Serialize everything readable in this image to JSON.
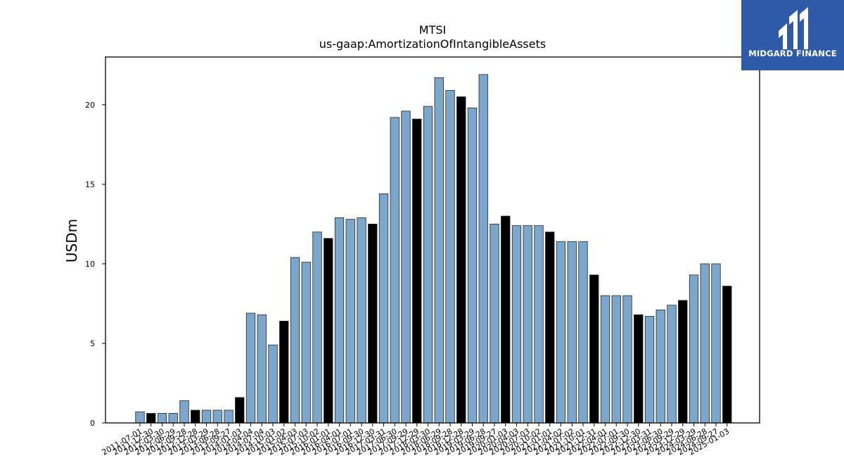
{
  "logo": {
    "text": "MIDGARD FINANCE",
    "background": "#2f5aa8"
  },
  "chart_data": {
    "type": "bar",
    "title": "MTSI",
    "subtitle": "us-gaap:AmortizationOfIntangibleAssets",
    "ylabel": "USDm",
    "xlabel": "",
    "ylim": [
      0,
      23
    ],
    "yticks": [
      0,
      5,
      10,
      15,
      20
    ],
    "grid": false,
    "colors": {
      "quarterly": "#7ba7cc",
      "annual": "#000000",
      "edge": "#222222"
    },
    "categories": [
      "2011-07-01",
      "2011-12-30",
      "2012-03-30",
      "2012-06-29",
      "2012-09-28",
      "2012-12-28",
      "2013-03-29",
      "2013-06-28",
      "2013-09-27",
      "2014-01-03",
      "2014-04-04",
      "2014-07-04",
      "2014-10-03",
      "2015-01-02",
      "2015-04-03",
      "2015-07-03",
      "2015-10-02",
      "2016-01-01",
      "2016-04-01",
      "2016-07-01",
      "2016-09-30",
      "2016-12-30",
      "2017-03-31",
      "2017-06-30",
      "2017-09-29",
      "2017-12-29",
      "2018-03-30",
      "2018-06-29",
      "2018-09-28",
      "2018-12-28",
      "2019-03-29",
      "2019-06-28",
      "2019-09-27",
      "2020-01-03",
      "2020-04-03",
      "2020-07-03",
      "2020-10-02",
      "2021-01-01",
      "2021-04-02",
      "2021-07-02",
      "2021-10-01",
      "2021-12-31",
      "2022-04-01",
      "2022-07-01",
      "2022-09-30",
      "2022-12-30",
      "2023-03-31",
      "2023-06-30",
      "2023-09-29",
      "2023-12-29",
      "2024-03-29",
      "2024-06-28",
      "2024-09-27",
      "2025-01-03"
    ],
    "values": [
      0.7,
      0.6,
      0.6,
      0.6,
      1.4,
      0.8,
      0.8,
      0.8,
      0.8,
      1.6,
      6.9,
      6.8,
      4.9,
      6.4,
      10.4,
      10.1,
      12.0,
      11.6,
      12.9,
      12.8,
      12.9,
      12.5,
      14.4,
      19.2,
      19.6,
      19.1,
      19.9,
      21.7,
      20.9,
      20.5,
      19.8,
      21.9,
      12.5,
      13.0,
      12.4,
      12.4,
      12.4,
      12.0,
      11.4,
      11.4,
      11.4,
      9.3,
      8.0,
      8.0,
      8.0,
      6.8,
      6.7,
      7.1,
      7.4,
      7.7,
      9.3,
      10.0,
      10.0,
      8.6
    ],
    "annual": [
      false,
      true,
      false,
      false,
      false,
      true,
      false,
      false,
      false,
      true,
      false,
      false,
      false,
      true,
      false,
      false,
      false,
      true,
      false,
      false,
      false,
      true,
      false,
      false,
      false,
      true,
      false,
      false,
      false,
      true,
      false,
      false,
      false,
      true,
      false,
      false,
      false,
      true,
      false,
      false,
      false,
      true,
      false,
      false,
      false,
      true,
      false,
      false,
      false,
      true,
      false,
      false,
      false,
      true
    ]
  }
}
